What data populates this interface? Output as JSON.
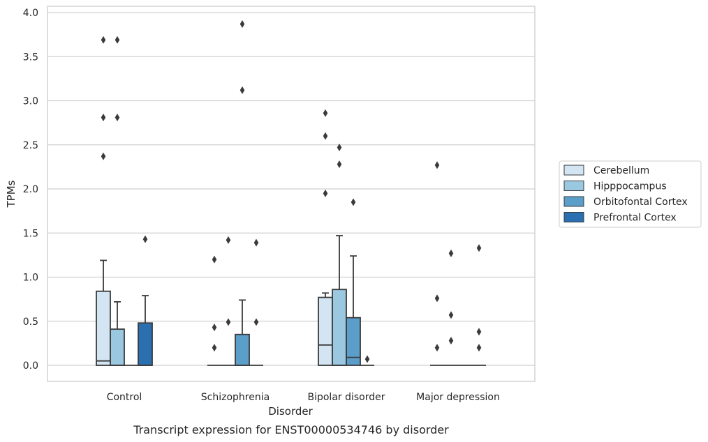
{
  "chart_data": {
    "type": "box",
    "title": "",
    "caption": "Transcript expression for ENST00000534746 by disorder",
    "xlabel": "Disorder",
    "ylabel": "TPMs",
    "ylim": [
      -0.18,
      4.07
    ],
    "y_ticks": [
      "0.0",
      "0.5",
      "1.0",
      "1.5",
      "2.0",
      "2.5",
      "3.0",
      "3.5",
      "4.0"
    ],
    "categories": [
      "Control",
      "Schizophrenia",
      "Bipolar disorder",
      "Major depression"
    ],
    "grid": "horizontal",
    "legend_position": "right",
    "series": [
      {
        "name": "Cerebellum",
        "color": "#d3e4f3",
        "boxes": [
          {
            "q1": 0.0,
            "median": 0.05,
            "q3": 0.84,
            "whisker_low": 0.0,
            "whisker_high": 1.19,
            "outliers": [
              2.37,
              2.81,
              3.69
            ]
          },
          {
            "q1": 0.0,
            "median": 0.0,
            "q3": 0.0,
            "whisker_low": 0.0,
            "whisker_high": 0.0,
            "outliers": [
              0.2,
              0.43,
              1.2
            ]
          },
          {
            "q1": 0.0,
            "median": 0.23,
            "q3": 0.77,
            "whisker_low": 0.0,
            "whisker_high": 0.82,
            "outliers": [
              1.95,
              2.6,
              2.86
            ]
          },
          {
            "q1": 0.0,
            "median": 0.0,
            "q3": 0.0,
            "whisker_low": 0.0,
            "whisker_high": 0.0,
            "outliers": [
              0.2,
              0.76,
              2.27
            ]
          }
        ]
      },
      {
        "name": "Hipppocampus",
        "color": "#9ac8e0",
        "boxes": [
          {
            "q1": 0.0,
            "median": 0.0,
            "q3": 0.41,
            "whisker_low": 0.0,
            "whisker_high": 0.72,
            "outliers": [
              2.81,
              3.69
            ]
          },
          {
            "q1": 0.0,
            "median": 0.0,
            "q3": 0.0,
            "whisker_low": 0.0,
            "whisker_high": 0.0,
            "outliers": [
              0.49,
              1.42
            ]
          },
          {
            "q1": 0.0,
            "median": 0.0,
            "q3": 0.86,
            "whisker_low": 0.0,
            "whisker_high": 1.47,
            "outliers": [
              2.28,
              2.47
            ]
          },
          {
            "q1": 0.0,
            "median": 0.0,
            "q3": 0.0,
            "whisker_low": 0.0,
            "whisker_high": 0.0,
            "outliers": [
              0.28,
              0.57,
              1.27
            ]
          }
        ]
      },
      {
        "name": "Orbitofontal Cortex",
        "color": "#5a9ec9",
        "boxes": [
          {
            "q1": 0.0,
            "median": 0.0,
            "q3": 0.0,
            "whisker_low": 0.0,
            "whisker_high": 0.0,
            "outliers": []
          },
          {
            "q1": 0.0,
            "median": 0.0,
            "q3": 0.35,
            "whisker_low": 0.0,
            "whisker_high": 0.74,
            "outliers": [
              3.12,
              3.87
            ]
          },
          {
            "q1": 0.0,
            "median": 0.09,
            "q3": 0.54,
            "whisker_low": 0.0,
            "whisker_high": 1.24,
            "outliers": [
              1.85
            ]
          },
          {
            "q1": 0.0,
            "median": 0.0,
            "q3": 0.0,
            "whisker_low": 0.0,
            "whisker_high": 0.0,
            "outliers": []
          }
        ]
      },
      {
        "name": "Prefrontal Cortex",
        "color": "#2a6fb0",
        "boxes": [
          {
            "q1": 0.0,
            "median": 0.0,
            "q3": 0.48,
            "whisker_low": 0.0,
            "whisker_high": 0.79,
            "outliers": [
              1.43
            ]
          },
          {
            "q1": 0.0,
            "median": 0.0,
            "q3": 0.0,
            "whisker_low": 0.0,
            "whisker_high": 0.0,
            "outliers": [
              0.49,
              1.39
            ]
          },
          {
            "q1": 0.0,
            "median": 0.0,
            "q3": 0.0,
            "whisker_low": 0.0,
            "whisker_high": 0.0,
            "outliers": [
              0.07
            ]
          },
          {
            "q1": 0.0,
            "median": 0.0,
            "q3": 0.0,
            "whisker_low": 0.0,
            "whisker_high": 0.0,
            "outliers": [
              0.2,
              0.38,
              1.33
            ]
          }
        ]
      }
    ]
  }
}
